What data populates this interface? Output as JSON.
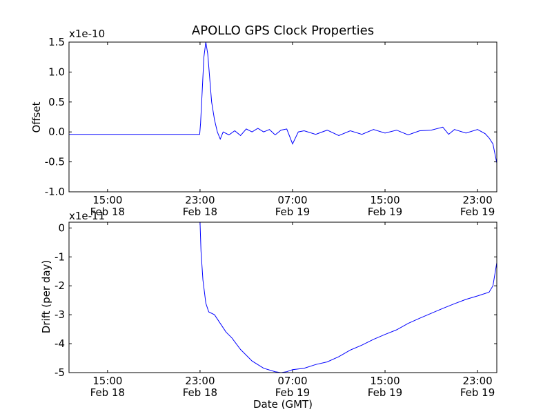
{
  "chart_data": [
    {
      "type": "line",
      "title": "APOLLO GPS Clock Properties",
      "xlabel": "",
      "ylabel": "Offset",
      "y_scale_label": "x1e-10",
      "y_scale": 1e-10,
      "xlim": [
        "Feb 18 11:40",
        "Feb 20 00:40"
      ],
      "ylim": [
        -1.0,
        1.5
      ],
      "x_ticks": [
        {
          "line1": "15:00",
          "line2": "Feb 18"
        },
        {
          "line1": "23:00",
          "line2": "Feb 18"
        },
        {
          "line1": "07:00",
          "line2": "Feb 19"
        },
        {
          "line1": "15:00",
          "line2": "Feb 19"
        },
        {
          "line1": "23:00",
          "line2": "Feb 19"
        }
      ],
      "y_ticks": [
        "1.5",
        "1.0",
        "0.5",
        "0.0",
        "-0.5",
        "-1.0"
      ],
      "series": [
        {
          "color": "#0000ff",
          "points": [
            [
              "Feb 18 11:40",
              -0.04
            ],
            [
              "Feb 18 17:00",
              -0.04
            ],
            [
              "Feb 18 22:58",
              -0.04
            ],
            [
              "Feb 18 23:03",
              0.15
            ],
            [
              "Feb 18 23:10",
              0.6
            ],
            [
              "Feb 18 23:20",
              1.25
            ],
            [
              "Feb 18 23:30",
              1.5
            ],
            [
              "Feb 18 23:40",
              1.3
            ],
            [
              "Feb 18 23:50",
              0.9
            ],
            [
              "Feb 19 00:00",
              0.5
            ],
            [
              "Feb 19 00:15",
              0.2
            ],
            [
              "Feb 19 00:30",
              0.0
            ],
            [
              "Feb 19 00:45",
              -0.12
            ],
            [
              "Feb 19 01:00",
              0.0
            ],
            [
              "Feb 19 01:30",
              -0.05
            ],
            [
              "Feb 19 02:00",
              0.02
            ],
            [
              "Feb 19 02:30",
              -0.06
            ],
            [
              "Feb 19 03:00",
              0.05
            ],
            [
              "Feb 19 03:30",
              0.0
            ],
            [
              "Feb 19 04:00",
              0.06
            ],
            [
              "Feb 19 04:30",
              0.0
            ],
            [
              "Feb 19 05:00",
              0.04
            ],
            [
              "Feb 19 05:30",
              -0.05
            ],
            [
              "Feb 19 06:00",
              0.03
            ],
            [
              "Feb 19 06:30",
              0.05
            ],
            [
              "Feb 19 07:00",
              -0.2
            ],
            [
              "Feb 19 07:30",
              0.0
            ],
            [
              "Feb 19 08:00",
              0.02
            ],
            [
              "Feb 19 09:00",
              -0.04
            ],
            [
              "Feb 19 10:00",
              0.03
            ],
            [
              "Feb 19 11:00",
              -0.06
            ],
            [
              "Feb 19 12:00",
              0.02
            ],
            [
              "Feb 19 13:00",
              -0.04
            ],
            [
              "Feb 19 14:00",
              0.04
            ],
            [
              "Feb 19 15:00",
              -0.02
            ],
            [
              "Feb 19 16:00",
              0.03
            ],
            [
              "Feb 19 17:00",
              -0.05
            ],
            [
              "Feb 19 18:00",
              0.02
            ],
            [
              "Feb 19 19:00",
              0.03
            ],
            [
              "Feb 19 20:00",
              0.08
            ],
            [
              "Feb 19 20:30",
              -0.04
            ],
            [
              "Feb 19 21:00",
              0.04
            ],
            [
              "Feb 19 22:00",
              -0.02
            ],
            [
              "Feb 19 23:00",
              0.04
            ],
            [
              "Feb 19 23:40",
              -0.03
            ],
            [
              "Feb 20 00:00",
              -0.1
            ],
            [
              "Feb 20 00:20",
              -0.2
            ],
            [
              "Feb 20 00:40",
              -0.52
            ]
          ]
        }
      ]
    },
    {
      "type": "line",
      "title": "",
      "xlabel": "Date (GMT)",
      "ylabel": "Drift (per day)",
      "y_scale_label": "x1e-11",
      "y_scale": 1e-11,
      "xlim": [
        "Feb 18 11:40",
        "Feb 20 00:40"
      ],
      "ylim": [
        -5,
        0.2
      ],
      "x_ticks": [
        {
          "line1": "15:00",
          "line2": "Feb 18"
        },
        {
          "line1": "23:00",
          "line2": "Feb 18"
        },
        {
          "line1": "07:00",
          "line2": "Feb 19"
        },
        {
          "line1": "15:00",
          "line2": "Feb 19"
        },
        {
          "line1": "23:00",
          "line2": "Feb 19"
        }
      ],
      "y_ticks": [
        "0",
        "-1",
        "-2",
        "-3",
        "-4",
        "-5"
      ],
      "series": [
        {
          "color": "#0000ff",
          "points": [
            [
              "Feb 18 11:40",
              0.2
            ],
            [
              "Feb 18 17:00",
              0.2
            ],
            [
              "Feb 18 23:00",
              0.2
            ],
            [
              "Feb 18 23:05",
              -0.8
            ],
            [
              "Feb 18 23:15",
              -1.8
            ],
            [
              "Feb 18 23:30",
              -2.6
            ],
            [
              "Feb 18 23:45",
              -2.9
            ],
            [
              "Feb 19 00:15",
              -3.0
            ],
            [
              "Feb 19 00:45",
              -3.3
            ],
            [
              "Feb 19 01:15",
              -3.6
            ],
            [
              "Feb 19 01:45",
              -3.8
            ],
            [
              "Feb 19 02:30",
              -4.2
            ],
            [
              "Feb 19 03:30",
              -4.6
            ],
            [
              "Feb 19 04:30",
              -4.85
            ],
            [
              "Feb 19 05:30",
              -4.97
            ],
            [
              "Feb 19 06:00",
              -5.0
            ],
            [
              "Feb 19 06:30",
              -4.97
            ],
            [
              "Feb 19 07:00",
              -4.9
            ],
            [
              "Feb 19 08:00",
              -4.85
            ],
            [
              "Feb 19 09:00",
              -4.72
            ],
            [
              "Feb 19 10:00",
              -4.63
            ],
            [
              "Feb 19 11:00",
              -4.45
            ],
            [
              "Feb 19 12:00",
              -4.22
            ],
            [
              "Feb 19 13:00",
              -4.05
            ],
            [
              "Feb 19 14:00",
              -3.85
            ],
            [
              "Feb 19 15:00",
              -3.68
            ],
            [
              "Feb 19 16:00",
              -3.52
            ],
            [
              "Feb 19 17:00",
              -3.3
            ],
            [
              "Feb 19 18:00",
              -3.12
            ],
            [
              "Feb 19 19:00",
              -2.95
            ],
            [
              "Feb 19 20:00",
              -2.78
            ],
            [
              "Feb 19 21:00",
              -2.62
            ],
            [
              "Feb 19 22:00",
              -2.47
            ],
            [
              "Feb 19 23:00",
              -2.35
            ],
            [
              "Feb 20 00:00",
              -2.22
            ],
            [
              "Feb 20 00:20",
              -2.0
            ],
            [
              "Feb 20 00:40",
              -1.2
            ]
          ]
        }
      ]
    }
  ]
}
